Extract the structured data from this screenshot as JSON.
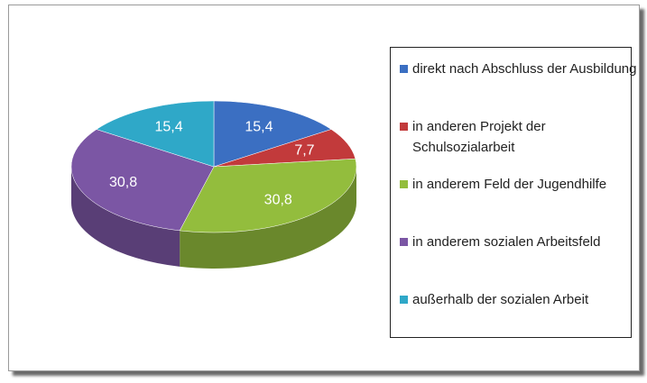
{
  "chart_data": {
    "type": "pie",
    "categories": [
      "direkt nach Abschluss der Ausbildung",
      "in anderen Projekt der Schulsozialarbeit",
      "in anderem Feld der Jugendhilfe",
      "in anderem sozialen Arbeitsfeld",
      "außerhalb der sozialen Arbeit"
    ],
    "values": [
      15.4,
      7.7,
      30.8,
      30.8,
      15.4
    ],
    "value_labels": [
      "15,4",
      "7,7",
      "30,8",
      "30,8",
      "15,4"
    ],
    "colors": [
      "#3b6fc2",
      "#c23a3b",
      "#93bd3d",
      "#7b56a4",
      "#2fa8c8"
    ],
    "legend": "right"
  }
}
